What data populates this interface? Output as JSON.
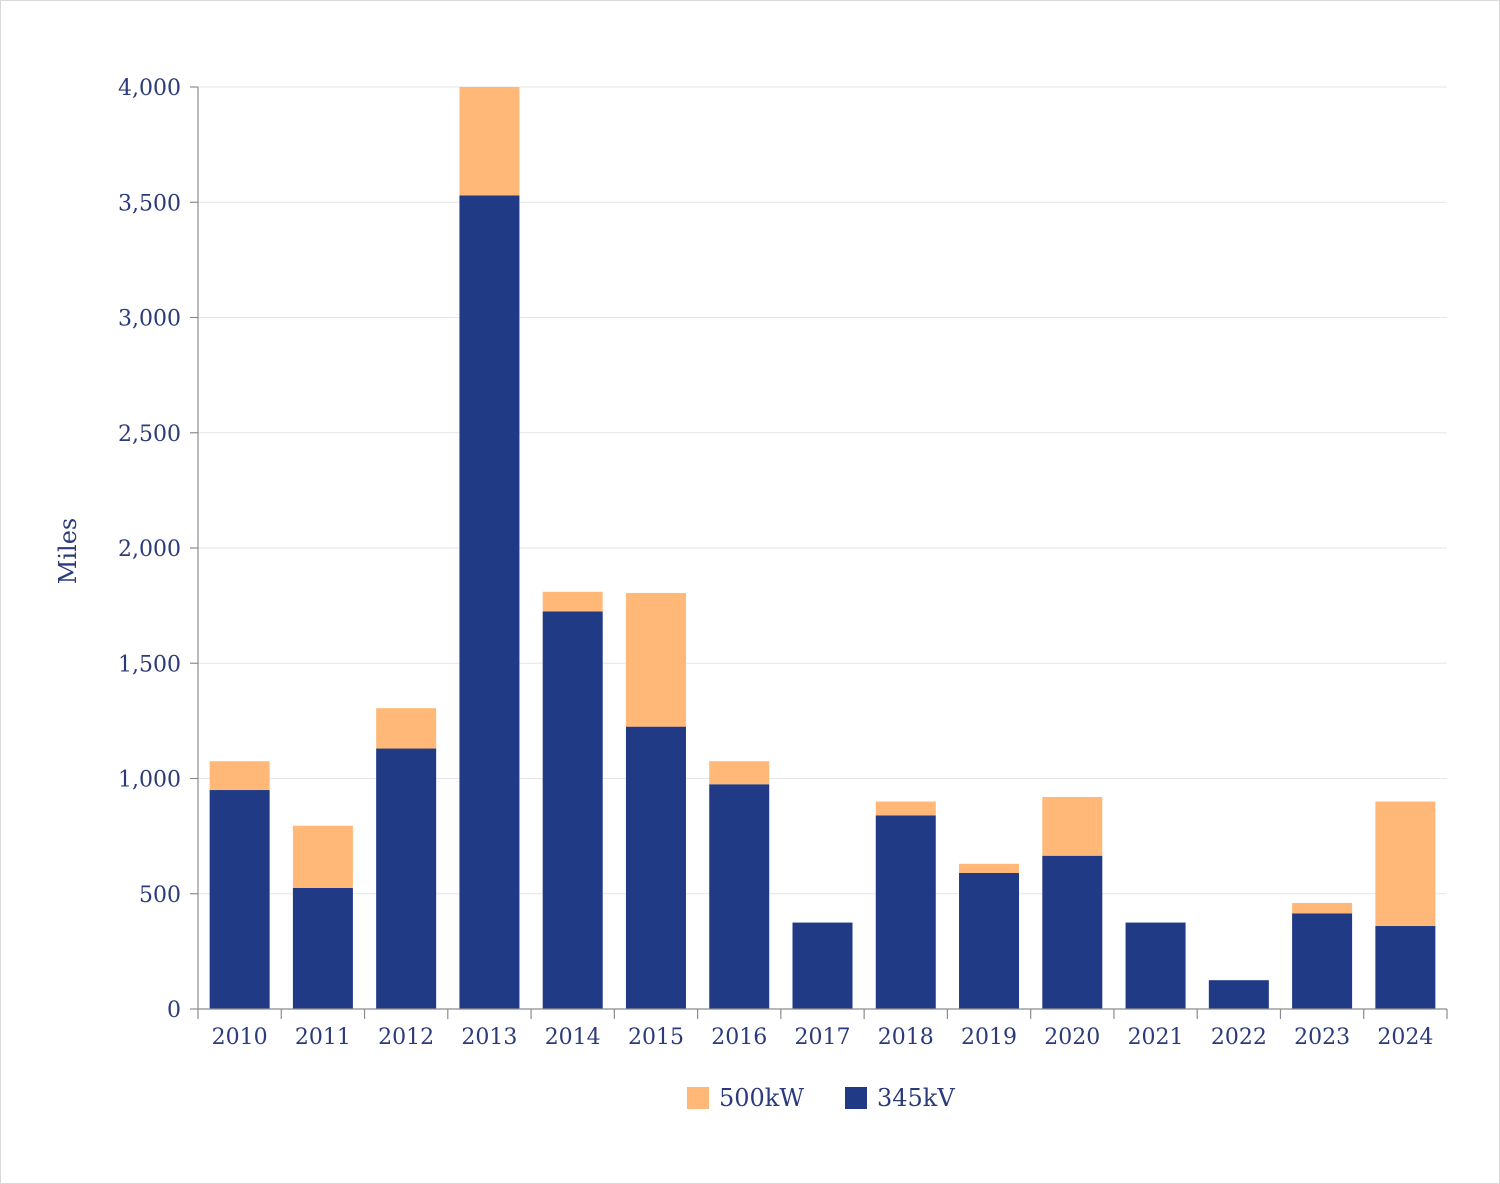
{
  "chart_data": {
    "type": "bar",
    "stacked": true,
    "ylabel": "Miles",
    "xlabel": "",
    "ylim": [
      0,
      4000
    ],
    "yticks": [
      0,
      500,
      1000,
      1500,
      2000,
      2500,
      3000,
      3500,
      4000
    ],
    "ytick_labels": [
      "0",
      "500",
      "1,000",
      "1,500",
      "2,000",
      "2,500",
      "3,000",
      "3,500",
      "4,000"
    ],
    "grid": true,
    "legend_position": "bottom-center",
    "categories": [
      "2010",
      "2011",
      "2012",
      "2013",
      "2014",
      "2015",
      "2016",
      "2017",
      "2018",
      "2019",
      "2020",
      "2021",
      "2022",
      "2023",
      "2024"
    ],
    "series": [
      {
        "name": "345kV",
        "color": "#203a85",
        "values": [
          950,
          525,
          1130,
          3530,
          1725,
          1225,
          975,
          375,
          840,
          590,
          665,
          375,
          125,
          415,
          360
        ]
      },
      {
        "name": "500kW",
        "color": "#ffb877",
        "values": [
          125,
          270,
          175,
          470,
          85,
          580,
          100,
          0,
          60,
          40,
          255,
          0,
          0,
          45,
          540
        ]
      }
    ],
    "legend_order": [
      "500kW",
      "345kV"
    ]
  }
}
